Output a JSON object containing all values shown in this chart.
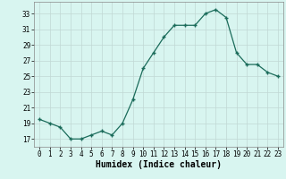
{
  "x": [
    0,
    1,
    2,
    3,
    4,
    5,
    6,
    7,
    8,
    9,
    10,
    11,
    12,
    13,
    14,
    15,
    16,
    17,
    18,
    19,
    20,
    21,
    22,
    23
  ],
  "y": [
    19.5,
    19.0,
    18.5,
    17.0,
    17.0,
    17.5,
    18.0,
    17.5,
    19.0,
    22.0,
    26.0,
    28.0,
    30.0,
    31.5,
    31.5,
    31.5,
    33.0,
    33.5,
    32.5,
    28.0,
    26.5,
    26.5,
    25.5,
    25.0
  ],
  "line_color": "#1a6b5a",
  "marker": "+",
  "marker_size": 3.5,
  "marker_lw": 1.0,
  "bg_color": "#d8f5f0",
  "grid_color": "#c0d8d4",
  "xlabel": "Humidex (Indice chaleur)",
  "xlim": [
    -0.5,
    23.5
  ],
  "ylim": [
    16.0,
    34.5
  ],
  "yticks": [
    17,
    19,
    21,
    23,
    25,
    27,
    29,
    31,
    33
  ],
  "xticks": [
    0,
    1,
    2,
    3,
    4,
    5,
    6,
    7,
    8,
    9,
    10,
    11,
    12,
    13,
    14,
    15,
    16,
    17,
    18,
    19,
    20,
    21,
    22,
    23
  ],
  "tick_fontsize": 5.5,
  "xlabel_fontsize": 7.0,
  "line_width": 0.9
}
